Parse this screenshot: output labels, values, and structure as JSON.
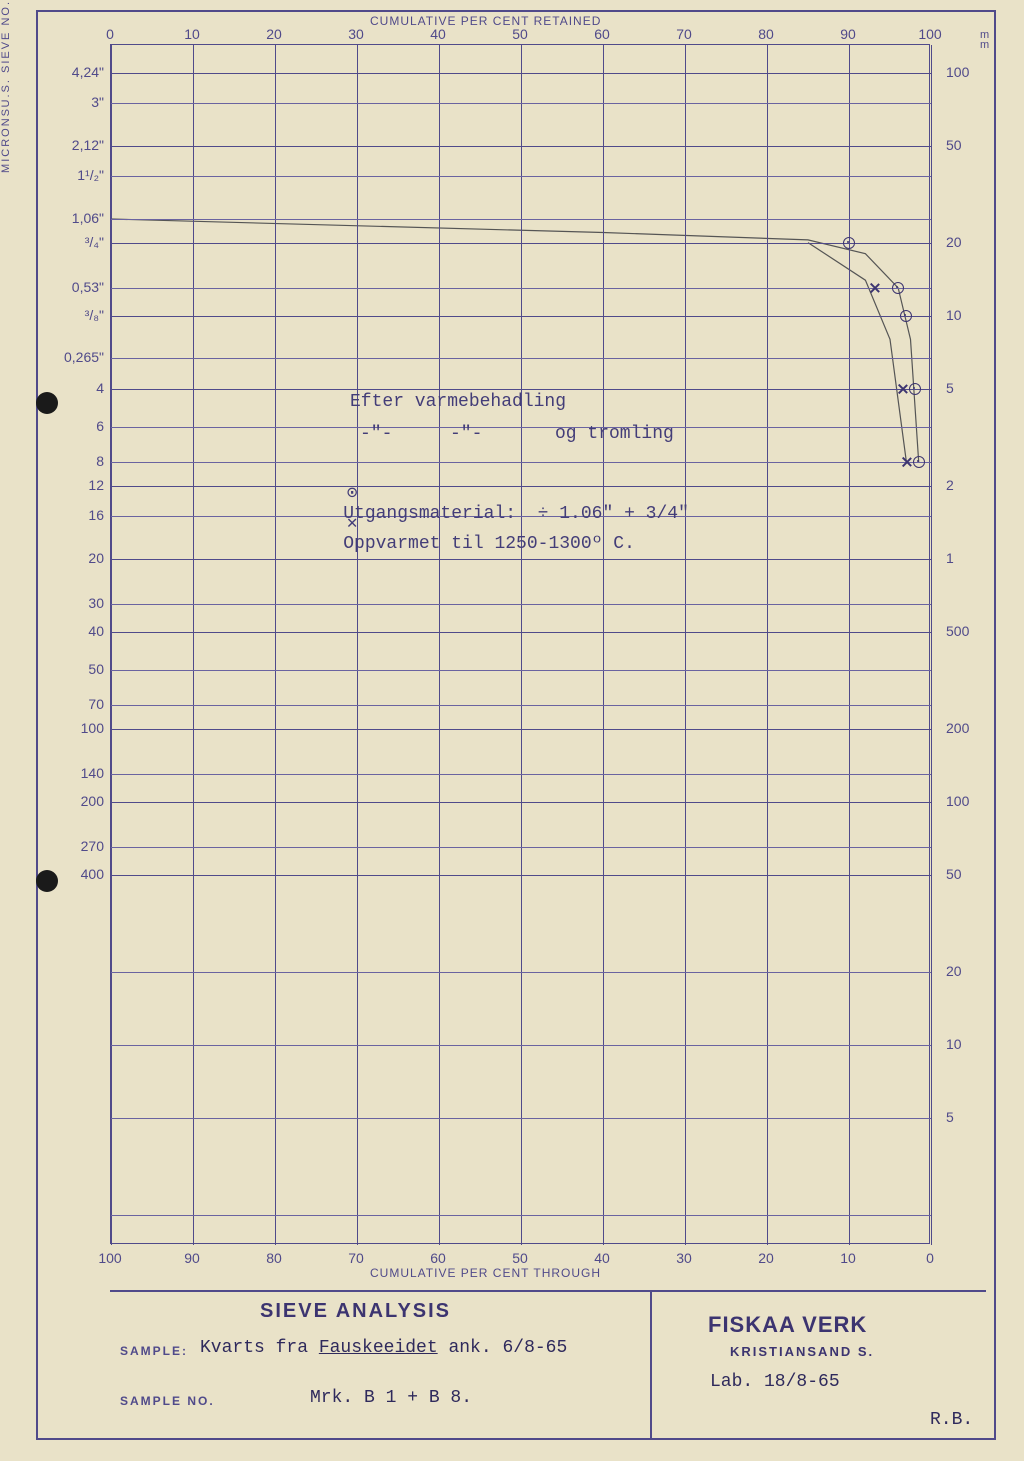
{
  "axes": {
    "top_title": "CUMULATIVE PER CENT RETAINED",
    "bottom_title": "CUMULATIVE PER CENT THROUGH",
    "left_rot_label": "U.S. SIEVE NO.",
    "right_rot_label": "MICRONS",
    "right_unit_top": "m\nm",
    "top_ticks": [
      0,
      10,
      20,
      30,
      40,
      50,
      60,
      70,
      80,
      90,
      100
    ],
    "bottom_ticks": [
      100,
      90,
      80,
      70,
      60,
      50,
      40,
      30,
      20,
      10,
      0
    ],
    "x_major_at": [
      0,
      10,
      20,
      30,
      40,
      50,
      60,
      70,
      80,
      90,
      100
    ],
    "left_ticks": [
      {
        "v": "4,24\"",
        "mm": 100,
        "major": true
      },
      {
        "v": "3\"",
        "mm": 75
      },
      {
        "v": "2,12\"",
        "mm": 50,
        "major": true
      },
      {
        "v": "1¹/₂\"",
        "mm": 37.5
      },
      {
        "v": "1,06\"",
        "mm": 25
      },
      {
        "v": "³/₄\"",
        "mm": 20,
        "major": true
      },
      {
        "v": "0,53\"",
        "mm": 13
      },
      {
        "v": "³/₈\"",
        "mm": 10,
        "major": true
      },
      {
        "v": "0,265\"",
        "mm": 6.7
      },
      {
        "v": "4",
        "mm": 5,
        "major": true
      },
      {
        "v": "6",
        "mm": 3.5
      },
      {
        "v": "8",
        "mm": 2.5
      },
      {
        "v": "12",
        "mm": 2,
        "major": true
      },
      {
        "v": "16",
        "mm": 1.5
      },
      {
        "v": "20",
        "mm": 1,
        "major": true
      },
      {
        "v": "30",
        "mm": 0.65
      },
      {
        "v": "40",
        "mm": 0.5,
        "major": true
      },
      {
        "v": "50",
        "mm": 0.35
      },
      {
        "v": "70",
        "mm": 0.25
      },
      {
        "v": "100",
        "mm": 0.2,
        "major": true
      },
      {
        "v": "140",
        "mm": 0.13
      },
      {
        "v": "200",
        "mm": 0.1,
        "major": true
      },
      {
        "v": "270",
        "mm": 0.065
      },
      {
        "v": "400",
        "mm": 0.05,
        "major": true
      }
    ],
    "right_ticks_mm": [
      100,
      50,
      20,
      10,
      5,
      2,
      1
    ],
    "right_ticks_um": [
      500,
      200,
      100,
      50,
      20,
      10,
      5
    ],
    "mm_range": [
      0.0015,
      130
    ],
    "plot_log_bands": 5
  },
  "annotations": {
    "line1": "Efter varmebehadling",
    "line2a": "-\"-",
    "line2b": "-\"-",
    "line2c": "og tromling",
    "leg1_sym": "⊙",
    "leg1_txt": "Utgangsmaterial:  ÷ 1.06\" + 3/4\"",
    "leg2_sym": "✕",
    "leg2_txt": "Oppvarmet til 1250-1300º C."
  },
  "series": {
    "utgang": {
      "marker": "circle",
      "points": [
        {
          "x": 90,
          "mm": 20
        },
        {
          "x": 96,
          "mm": 13
        },
        {
          "x": 97,
          "mm": 10
        },
        {
          "x": 98,
          "mm": 5
        },
        {
          "x": 98.5,
          "mm": 2.5
        }
      ],
      "curve": [
        {
          "x": 0,
          "mm": 25
        },
        {
          "x": 60,
          "mm": 22
        },
        {
          "x": 85,
          "mm": 20.5
        },
        {
          "x": 92,
          "mm": 18
        },
        {
          "x": 96,
          "mm": 13
        },
        {
          "x": 97.5,
          "mm": 8
        },
        {
          "x": 98.5,
          "mm": 2.5
        }
      ]
    },
    "oppvarmet": {
      "marker": "x",
      "points": [
        {
          "x": 93,
          "mm": 13
        },
        {
          "x": 96.5,
          "mm": 5
        },
        {
          "x": 97,
          "mm": 2.5
        }
      ],
      "curve": [
        {
          "x": 85,
          "mm": 20
        },
        {
          "x": 92,
          "mm": 14
        },
        {
          "x": 95,
          "mm": 8
        },
        {
          "x": 97,
          "mm": 2.5
        }
      ]
    }
  },
  "footer": {
    "title": "SIEVE ANALYSIS",
    "sample_label": "SAMPLE:",
    "sample_value_pre": "Kvarts fra ",
    "sample_value_u": "Fauskeeidet",
    "sample_value_post": " ank. 6/8-65",
    "sample_no_label": "SAMPLE NO.",
    "sample_no_value": "Mrk. B 1 + B 8.",
    "org1": "FISKAA VERK",
    "org2": "KRISTIANSAND S.",
    "lab": "Lab. 18/8-65",
    "sign": "R.B."
  },
  "colors": {
    "paper": "#e9e2c8",
    "frame": "#504a8a",
    "grid": "#6a63a0",
    "ink": "#3c3470",
    "type": "#2f2a5c",
    "pencil": "#555555"
  }
}
